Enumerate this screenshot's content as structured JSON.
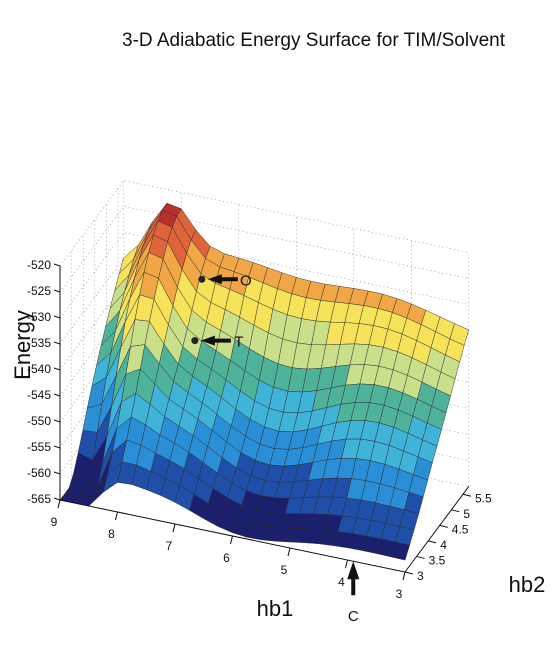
{
  "chart_data": {
    "type": "surface",
    "title": "3-D Adiabatic Energy Surface for TIM/Solvent",
    "xlabel": "hb1",
    "ylabel": "hb2",
    "zlabel": "Energy",
    "xlim": [
      3,
      9
    ],
    "ylim": [
      3,
      5.75
    ],
    "zlim": [
      -565,
      -520
    ],
    "x_ticks": [
      "9",
      "8",
      "7",
      "6",
      "5",
      "4",
      "3"
    ],
    "y_ticks": [
      "3",
      "3.5",
      "4",
      "4.5",
      "5",
      "5.5"
    ],
    "z_ticks": [
      "-520",
      "-525",
      "-530",
      "-535",
      "-540",
      "-545",
      "-550",
      "-555",
      "-560",
      "-565"
    ],
    "grid": true,
    "colormap": [
      "#1a1f6e",
      "#1f4fa8",
      "#2a8fd6",
      "#3fb3d8",
      "#4fb39a",
      "#c9df8a",
      "#f6e35a",
      "#f1a746",
      "#e0643a",
      "#b8302a"
    ],
    "annotations": [
      {
        "label": "O",
        "x": 7.3,
        "y": 4.9,
        "z": -530
      },
      {
        "label": "T",
        "x": 7.3,
        "y": 4.6,
        "z": -540
      },
      {
        "label": "C",
        "x": 3.9,
        "y": 3.0,
        "z": -565
      }
    ]
  }
}
